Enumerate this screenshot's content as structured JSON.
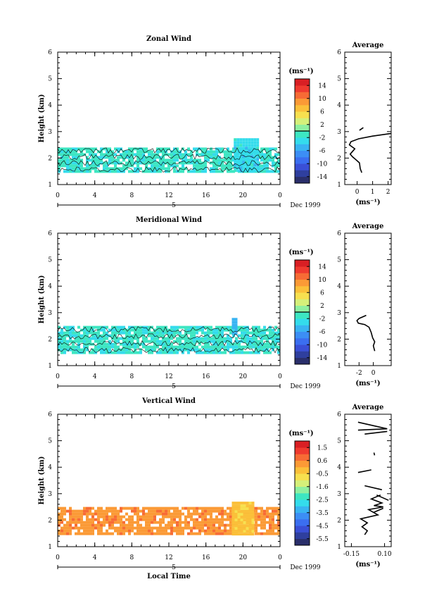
{
  "chart_data": [
    {
      "type": "heatmap",
      "title": "Zonal Wind",
      "ylabel": "Height (km)",
      "xlabel": "",
      "ylim": [
        1,
        6
      ],
      "xlim": [
        0,
        24
      ],
      "y_ticks": [
        "1",
        "2",
        "3",
        "4",
        "5",
        "6"
      ],
      "x_ticks": [
        "0",
        "4",
        "8",
        "12",
        "16",
        "20",
        "0"
      ],
      "day_marker": "5",
      "date_label": "Dec 1999",
      "data_bands": [
        {
          "x_range": [
            0,
            24
          ],
          "height_range": [
            1.45,
            2.4
          ],
          "value_approx": -1.5
        },
        {
          "x_range": [
            19,
            21.5
          ],
          "height_range": [
            1.5,
            2.75
          ],
          "value_approx": -3
        }
      ],
      "colorbar": {
        "unit": "(ms⁻¹)",
        "ticks": [
          "14",
          "10",
          "6",
          "2",
          "-2",
          "-6",
          "-10",
          "-14"
        ],
        "range": [
          -16,
          16
        ],
        "colors": [
          "#2a2f6b",
          "#2f3f9e",
          "#3a4fd6",
          "#3b6ef0",
          "#3c8ef5",
          "#39b4f2",
          "#34dcec",
          "#3de6c2",
          "#8ff0a0",
          "#d5f07a",
          "#f7e04f",
          "#fbc03a",
          "#fb9a36",
          "#f76b35",
          "#ef3a2f",
          "#d91f24"
        ],
        "zero_line": 0
      },
      "average_profile": {
        "title": "Average",
        "xlabel": "(ms⁻¹)",
        "x_ticks": [
          "0",
          "1",
          "2"
        ],
        "xlim": [
          -0.8,
          2.2
        ],
        "y_ticks": [
          "1",
          "2",
          "3",
          "4",
          "5",
          "6"
        ],
        "segments": [
          [
            [
              0.15,
              3.05
            ],
            [
              0.4,
              3.15
            ]
          ],
          [
            [
              2.2,
              2.93
            ],
            [
              1.0,
              2.83
            ],
            [
              0.1,
              2.73
            ],
            [
              -0.4,
              2.62
            ],
            [
              -0.5,
              2.5
            ],
            [
              -0.15,
              2.35
            ],
            [
              -0.45,
              2.15
            ],
            [
              -0.3,
              2.05
            ],
            [
              -0.1,
              1.95
            ],
            [
              0.15,
              1.82
            ],
            [
              0.2,
              1.6
            ],
            [
              0.3,
              1.45
            ]
          ]
        ]
      }
    },
    {
      "type": "heatmap",
      "title": "Meridional Wind",
      "ylabel": "Height (km)",
      "xlabel": "",
      "ylim": [
        1,
        6
      ],
      "xlim": [
        0,
        24
      ],
      "y_ticks": [
        "1",
        "2",
        "3",
        "4",
        "5",
        "6"
      ],
      "x_ticks": [
        "0",
        "4",
        "8",
        "12",
        "16",
        "20",
        "0"
      ],
      "day_marker": "5",
      "date_label": "Dec 1999",
      "data_bands": [
        {
          "x_range": [
            0,
            24
          ],
          "height_range": [
            1.45,
            2.5
          ],
          "value_approx": -1.5
        },
        {
          "x_range": [
            18.8,
            19.2
          ],
          "height_range": [
            2.2,
            2.8
          ],
          "value_approx": -5
        }
      ],
      "colorbar": {
        "unit": "(ms⁻¹)",
        "ticks": [
          "14",
          "10",
          "6",
          "2",
          "-2",
          "-6",
          "-10",
          "-14"
        ],
        "range": [
          -16,
          16
        ],
        "colors": [
          "#2a2f6b",
          "#2f3f9e",
          "#3a4fd6",
          "#3b6ef0",
          "#3c8ef5",
          "#39b4f2",
          "#34dcec",
          "#3de6c2",
          "#8ff0a0",
          "#d5f07a",
          "#f7e04f",
          "#fbc03a",
          "#fb9a36",
          "#f76b35",
          "#ef3a2f",
          "#d91f24"
        ],
        "zero_line": 0
      },
      "average_profile": {
        "title": "Average",
        "xlabel": "(ms⁻¹)",
        "x_ticks": [
          "-2",
          "0"
        ],
        "xlim": [
          -4,
          2.5
        ],
        "y_ticks": [
          "1",
          "2",
          "3",
          "4",
          "5",
          "6"
        ],
        "segments": [
          [
            [
              -1.0,
              2.9
            ],
            [
              -2.0,
              2.78
            ],
            [
              -2.3,
              2.7
            ],
            [
              -2.1,
              2.6
            ],
            [
              -1.2,
              2.55
            ],
            [
              -0.6,
              2.45
            ],
            [
              -0.3,
              2.25
            ],
            [
              -0.1,
              2.05
            ],
            [
              0.2,
              1.9
            ],
            [
              0.0,
              1.75
            ],
            [
              0.2,
              1.55
            ]
          ]
        ]
      }
    },
    {
      "type": "heatmap",
      "title": "Vertical Wind",
      "ylabel": "Height (km)",
      "xlabel": "Local Time",
      "ylim": [
        1,
        6
      ],
      "xlim": [
        0,
        24
      ],
      "y_ticks": [
        "1",
        "2",
        "3",
        "4",
        "5",
        "6"
      ],
      "x_ticks": [
        "0",
        "4",
        "8",
        "12",
        "16",
        "20",
        "0"
      ],
      "day_marker": "5",
      "date_label": "Dec 1999",
      "data_bands": [
        {
          "x_range": [
            0,
            24
          ],
          "height_range": [
            1.45,
            2.5
          ],
          "value_approx": 0.3
        },
        {
          "x_range": [
            18.8,
            21
          ],
          "height_range": [
            1.5,
            2.7
          ],
          "value_approx": -0.3
        }
      ],
      "colorbar": {
        "unit": "(ms⁻¹)",
        "ticks": [
          "1.5",
          "0.6",
          "-0.5",
          "-1.6",
          "-2.5",
          "-3.5",
          "-4.5",
          "-5.5"
        ],
        "range": [
          -6,
          2
        ],
        "colors": [
          "#2a2f6b",
          "#2f3f9e",
          "#3a4fd6",
          "#3b6ef0",
          "#3c8ef5",
          "#39b4f2",
          "#34dcec",
          "#3de6c2",
          "#8ff0a0",
          "#d5f07a",
          "#f7e04f",
          "#fbc03a",
          "#fb9a36",
          "#f76b35",
          "#ef3a2f",
          "#d91f24"
        ]
      },
      "average_profile": {
        "title": "Average",
        "xlabel": "(ms⁻¹)",
        "x_ticks": [
          "-0.15",
          "0.10"
        ],
        "xlim": [
          -0.2,
          0.15
        ],
        "y_ticks": [
          "1",
          "2",
          "3",
          "4",
          "5",
          "6"
        ],
        "segments": [
          [
            [
              -0.1,
              5.7
            ],
            [
              0.12,
              5.45
            ],
            [
              -0.1,
              5.4
            ]
          ],
          [
            [
              -0.05,
              5.25
            ],
            [
              0.12,
              5.35
            ]
          ],
          [
            [
              0.02,
              4.55
            ],
            [
              0.025,
              4.45
            ]
          ],
          [
            [
              -0.1,
              3.8
            ],
            [
              0.0,
              3.9
            ]
          ],
          [
            [
              -0.05,
              3.3
            ],
            [
              0.08,
              3.15
            ]
          ],
          [
            [
              0.04,
              2.95
            ],
            [
              0.13,
              2.75
            ]
          ],
          [
            [
              0.07,
              2.95
            ],
            [
              0.0,
              2.8
            ],
            [
              0.08,
              2.65
            ],
            [
              0.02,
              2.55
            ],
            [
              0.09,
              2.5
            ],
            [
              -0.02,
              2.4
            ],
            [
              0.05,
              2.2
            ],
            [
              -0.08,
              2.05
            ],
            [
              -0.03,
              1.9
            ],
            [
              -0.07,
              1.75
            ],
            [
              -0.03,
              1.6
            ],
            [
              -0.05,
              1.45
            ]
          ],
          [
            [
              0.02,
              2.3
            ],
            [
              0.09,
              2.45
            ]
          ]
        ]
      }
    }
  ]
}
